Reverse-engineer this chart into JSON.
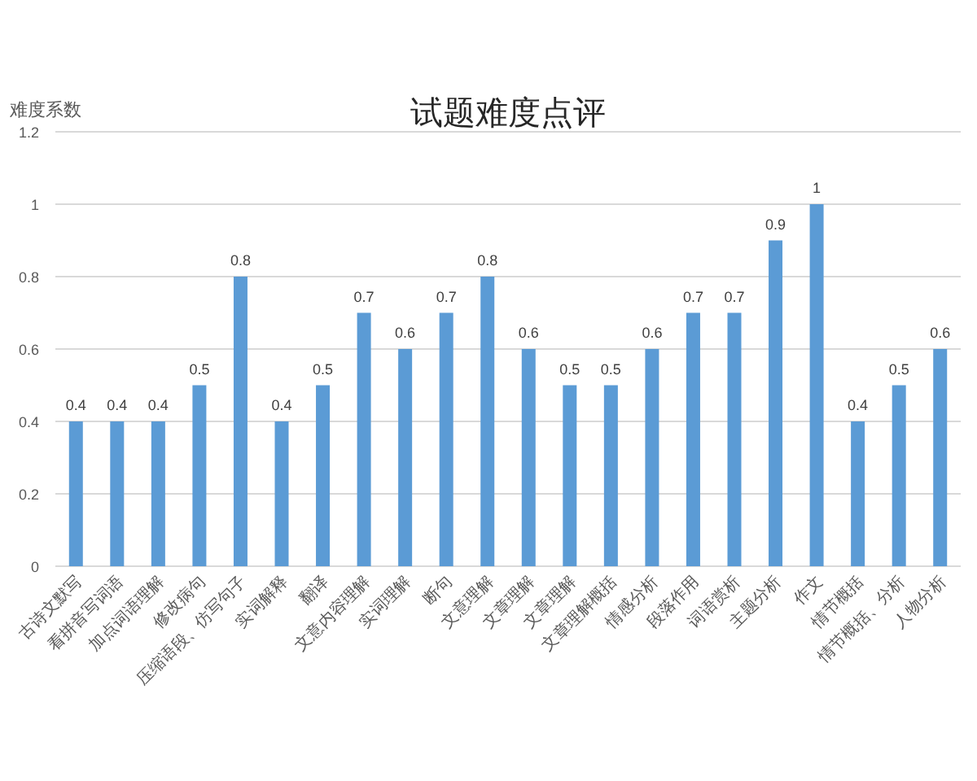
{
  "chart_data": {
    "type": "bar",
    "title": "试题难度点评",
    "ylabel": "难度系数",
    "categories": [
      "古诗文默写",
      "看拼音写词语",
      "加点词语理解",
      "修改病句",
      "压缩语段、仿写句子",
      "实词解释",
      "翻译",
      "文意内容理解",
      "实词理解",
      "断句",
      "文意理解",
      "文章理解",
      "文章理解",
      "文章理解概括",
      "情感分析",
      "段落作用",
      "词语赏析",
      "主题分析",
      "作文",
      "情节概括",
      "情节概括、分析",
      "人物分析"
    ],
    "values": [
      0.4,
      0.4,
      0.4,
      0.5,
      0.8,
      0.4,
      0.5,
      0.7,
      0.6,
      0.7,
      0.8,
      0.6,
      0.5,
      0.5,
      0.6,
      0.7,
      0.7,
      0.9,
      1,
      0.4,
      0.5,
      0.6
    ],
    "color": "#5b9bd5",
    "ylim": [
      0,
      1.2
    ],
    "yticks": [
      0,
      0.2,
      0.4,
      0.6,
      0.8,
      1,
      1.2
    ],
    "grid": "y",
    "data_labels": true
  }
}
